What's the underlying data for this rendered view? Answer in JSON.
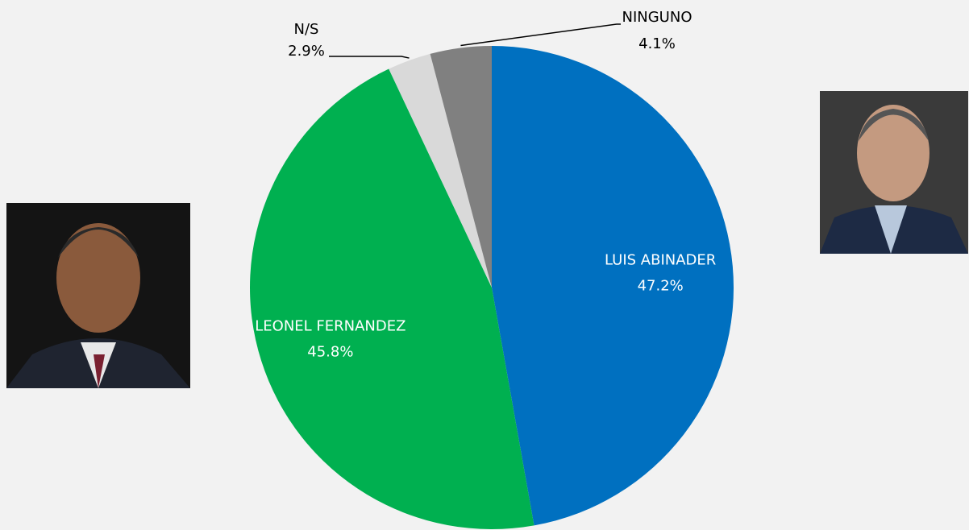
{
  "chart_data": {
    "type": "pie",
    "categories": [
      "LUIS ABINADER",
      "LEONEL FERNANDEZ",
      "N/S",
      "NINGUNO"
    ],
    "values": [
      47.2,
      45.8,
      2.9,
      4.1
    ],
    "value_labels": [
      "47.2%",
      "45.8%",
      "2.9%",
      "4.1%"
    ],
    "colors": [
      "#0070c0",
      "#00b050",
      "#d9d9d9",
      "#808080"
    ],
    "label_colors": [
      "#ffffff",
      "#ffffff",
      "#000000",
      "#000000"
    ]
  }
}
